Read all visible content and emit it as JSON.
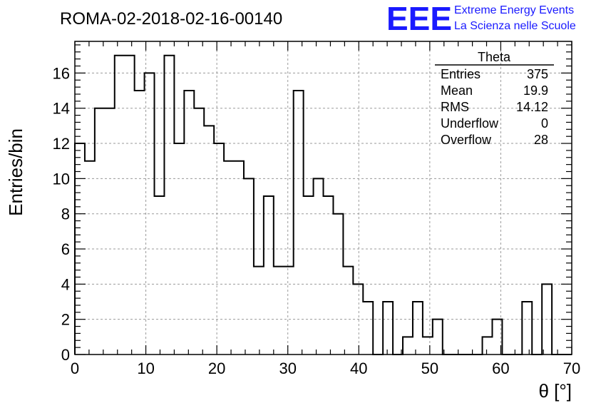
{
  "chart_data": {
    "type": "bar",
    "subtype": "step-histogram",
    "title": "ROMA-02-2018-02-16-00140",
    "xlabel": "θ [°]",
    "ylabel": "Entries/bin",
    "xlim": [
      0,
      70
    ],
    "ylim": [
      0,
      17.8
    ],
    "grid": true,
    "x_ticks": [
      0,
      10,
      20,
      30,
      40,
      50,
      60,
      70
    ],
    "y_ticks": [
      0,
      2,
      4,
      6,
      8,
      10,
      12,
      14,
      16
    ],
    "bin_edges": [
      0,
      1.4,
      2.8,
      4.2,
      5.6,
      7.0,
      8.4,
      9.8,
      11.2,
      12.6,
      14.0,
      15.4,
      16.8,
      18.2,
      19.6,
      21.0,
      22.4,
      23.8,
      25.2,
      26.6,
      28.0,
      29.4,
      30.8,
      32.2,
      33.6,
      35.0,
      36.4,
      37.8,
      39.2,
      40.6,
      42.0,
      43.4,
      44.8,
      46.2,
      47.6,
      49.0,
      50.4,
      51.8,
      53.2,
      54.6,
      56.0,
      57.4,
      58.8,
      60.2,
      61.6,
      63.0,
      64.4,
      65.8,
      67.2,
      68.6,
      70.0
    ],
    "values": [
      12,
      11,
      14,
      14,
      17,
      17,
      15,
      16,
      9,
      17,
      12,
      15,
      14,
      13,
      12,
      11,
      11,
      10,
      5,
      9,
      5,
      5,
      15,
      9,
      10,
      9,
      8,
      5,
      4,
      3,
      0,
      3,
      0,
      1,
      3,
      1,
      2,
      0,
      0,
      0,
      0,
      1,
      2,
      0,
      0,
      3,
      0,
      4,
      0,
      0
    ],
    "line_color": "#000000"
  },
  "stats_box": {
    "name": "Theta",
    "rows": [
      {
        "label": "Entries",
        "value": "375"
      },
      {
        "label": "Mean",
        "value": "19.9"
      },
      {
        "label": "RMS",
        "value": "14.12"
      },
      {
        "label": "Underflow",
        "value": "0"
      },
      {
        "label": "Overflow",
        "value": "28"
      }
    ]
  },
  "logo": {
    "big_text": "EEE",
    "line1": "Extreme Energy Events",
    "line2": "La Scienza nelle Scuole",
    "color": "#1a1aff"
  }
}
